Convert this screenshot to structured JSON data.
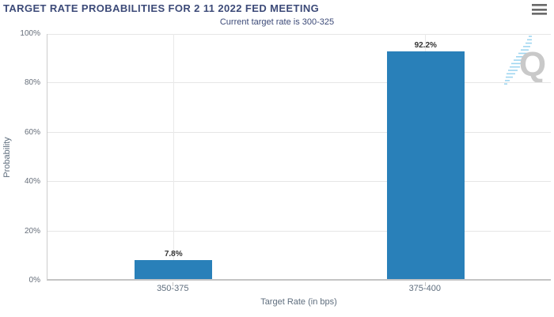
{
  "header": {
    "title": "TARGET RATE PROBABILITIES FOR 2 11 2022 FED MEETING",
    "subtitle": "Current target rate is 300-325",
    "menu_icon": "hamburger-menu-icon"
  },
  "chart_data": {
    "type": "bar",
    "title": "TARGET RATE PROBABILITIES FOR 2 11 2022 FED MEETING",
    "subtitle": "Current target rate is 300-325",
    "categories": [
      "350-375",
      "375-400"
    ],
    "values": [
      7.8,
      92.2
    ],
    "data_labels": [
      "7.8%",
      "92.2%"
    ],
    "xlabel": "Target Rate (in bps)",
    "ylabel": "Probability",
    "ylim": [
      0,
      100
    ],
    "y_ticks": [
      0,
      20,
      40,
      60,
      80,
      100
    ],
    "y_tick_labels": [
      "0%",
      "20%",
      "40%",
      "60%",
      "80%",
      "100%"
    ],
    "grid": true,
    "legend": "none",
    "bar_color": "#2980b9"
  },
  "watermark": {
    "letter": "Q"
  },
  "colors": {
    "title_text": "#3c4a78",
    "subtitle_text": "#3c4a78",
    "bar": "#2980b9",
    "data_label": "#333333",
    "tick_label": "#5f6e7e",
    "gridline": "#e6e6e6",
    "axis_line": "#c4c4c4",
    "menu_icon": "#6b6b6b",
    "watermark_q": "#c9c9c9",
    "watermark_dashes": "#9fd6f0"
  }
}
